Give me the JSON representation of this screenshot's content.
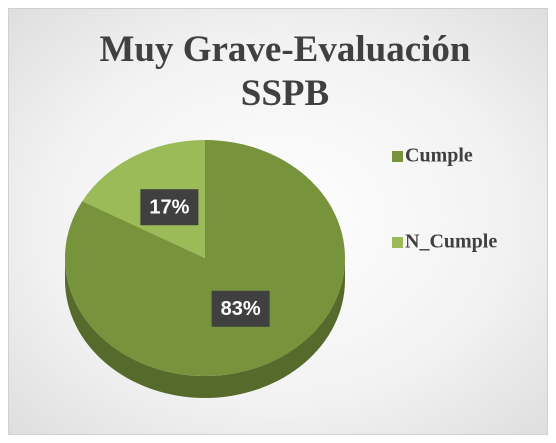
{
  "chart_data": {
    "type": "pie",
    "title": "Muy Grave-Evaluación SSPB",
    "categories": [
      "Cumple",
      "N_Cumple"
    ],
    "values": [
      83,
      17
    ],
    "value_labels": [
      "83%",
      "17%"
    ],
    "colors": [
      "#77933c",
      "#9bbb59"
    ],
    "legend": "right"
  }
}
